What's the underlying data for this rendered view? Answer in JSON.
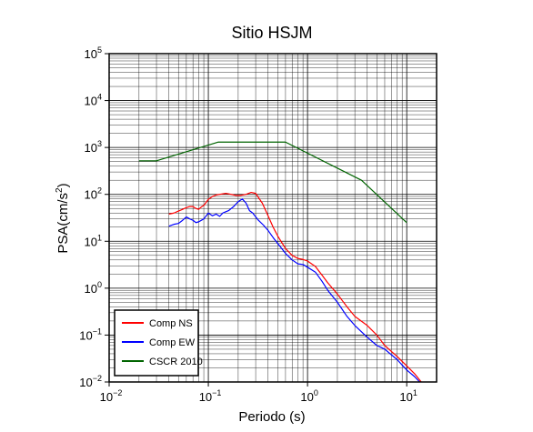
{
  "chart_data": {
    "type": "line",
    "title": "Sitio HSJM",
    "xlabel": "Periodo (s)",
    "ylabel": "PSA(cm/s2)",
    "ylabel_base": "PSA(cm/s",
    "ylabel_sup": "2",
    "ylabel_end": ")",
    "xscale": "log",
    "yscale": "log",
    "xlim": [
      0.01,
      20
    ],
    "ylim": [
      0.01,
      100000
    ],
    "grid": true,
    "legend_position": "bottom-left",
    "x_ticks": [
      {
        "base": "10",
        "exp": "−2",
        "value": 0.01
      },
      {
        "base": "10",
        "exp": "−1",
        "value": 0.1
      },
      {
        "base": "10",
        "exp": "0",
        "value": 1
      },
      {
        "base": "10",
        "exp": "1",
        "value": 10
      }
    ],
    "y_ticks": [
      {
        "base": "10",
        "exp": "−2",
        "value": 0.01
      },
      {
        "base": "10",
        "exp": "−1",
        "value": 0.1
      },
      {
        "base": "10",
        "exp": "0",
        "value": 1
      },
      {
        "base": "10",
        "exp": "1",
        "value": 10
      },
      {
        "base": "10",
        "exp": "2",
        "value": 100
      },
      {
        "base": "10",
        "exp": "3",
        "value": 1000
      },
      {
        "base": "10",
        "exp": "4",
        "value": 10000
      },
      {
        "base": "10",
        "exp": "5",
        "value": 100000
      }
    ],
    "series": [
      {
        "name": "Comp NS",
        "color": "#ff0000",
        "x": [
          0.04,
          0.045,
          0.05,
          0.055,
          0.06,
          0.065,
          0.07,
          0.075,
          0.08,
          0.085,
          0.09,
          0.1,
          0.11,
          0.12,
          0.13,
          0.15,
          0.17,
          0.19,
          0.21,
          0.24,
          0.27,
          0.3,
          0.35,
          0.4,
          0.45,
          0.5,
          0.6,
          0.7,
          0.8,
          0.9,
          1.0,
          1.2,
          1.4,
          1.6,
          2.0,
          2.5,
          3.0,
          4.0,
          5.0,
          6.0,
          8.0,
          10.0,
          12.0,
          14.0
        ],
        "y": [
          38,
          40,
          44,
          48,
          52,
          55,
          55,
          50,
          48,
          54,
          58,
          78,
          90,
          97,
          100,
          105,
          100,
          95,
          95,
          100,
          110,
          105,
          65,
          35,
          20,
          13,
          7,
          5,
          4.3,
          4.1,
          3.8,
          2.9,
          1.9,
          1.3,
          0.75,
          0.4,
          0.25,
          0.16,
          0.1,
          0.06,
          0.035,
          0.022,
          0.015,
          0.01
        ]
      },
      {
        "name": "Comp EW",
        "color": "#0000ff",
        "x": [
          0.04,
          0.045,
          0.05,
          0.055,
          0.06,
          0.065,
          0.07,
          0.075,
          0.08,
          0.09,
          0.1,
          0.11,
          0.12,
          0.13,
          0.14,
          0.16,
          0.18,
          0.2,
          0.22,
          0.24,
          0.26,
          0.28,
          0.32,
          0.36,
          0.4,
          0.45,
          0.5,
          0.6,
          0.7,
          0.8,
          0.9,
          1.0,
          1.2,
          1.4,
          1.6,
          2.0,
          2.5,
          3.0,
          4.0,
          5.0,
          6.0,
          8.0,
          10.0,
          12.0,
          13.5
        ],
        "y": [
          21,
          23,
          24,
          28,
          33,
          30,
          28,
          25,
          26,
          30,
          40,
          35,
          38,
          34,
          40,
          45,
          55,
          70,
          80,
          65,
          45,
          40,
          28,
          22,
          17,
          12,
          9,
          5.5,
          4.0,
          3.3,
          3.2,
          2.8,
          2.2,
          1.4,
          0.9,
          0.5,
          0.25,
          0.16,
          0.09,
          0.06,
          0.05,
          0.03,
          0.018,
          0.013,
          0.01
        ]
      },
      {
        "name": "CSCR 2010",
        "color": "#006400",
        "x": [
          0.02,
          0.03,
          0.125,
          0.6,
          3.5,
          10.0
        ],
        "y": [
          520,
          520,
          1300,
          1300,
          200,
          25
        ]
      }
    ]
  }
}
